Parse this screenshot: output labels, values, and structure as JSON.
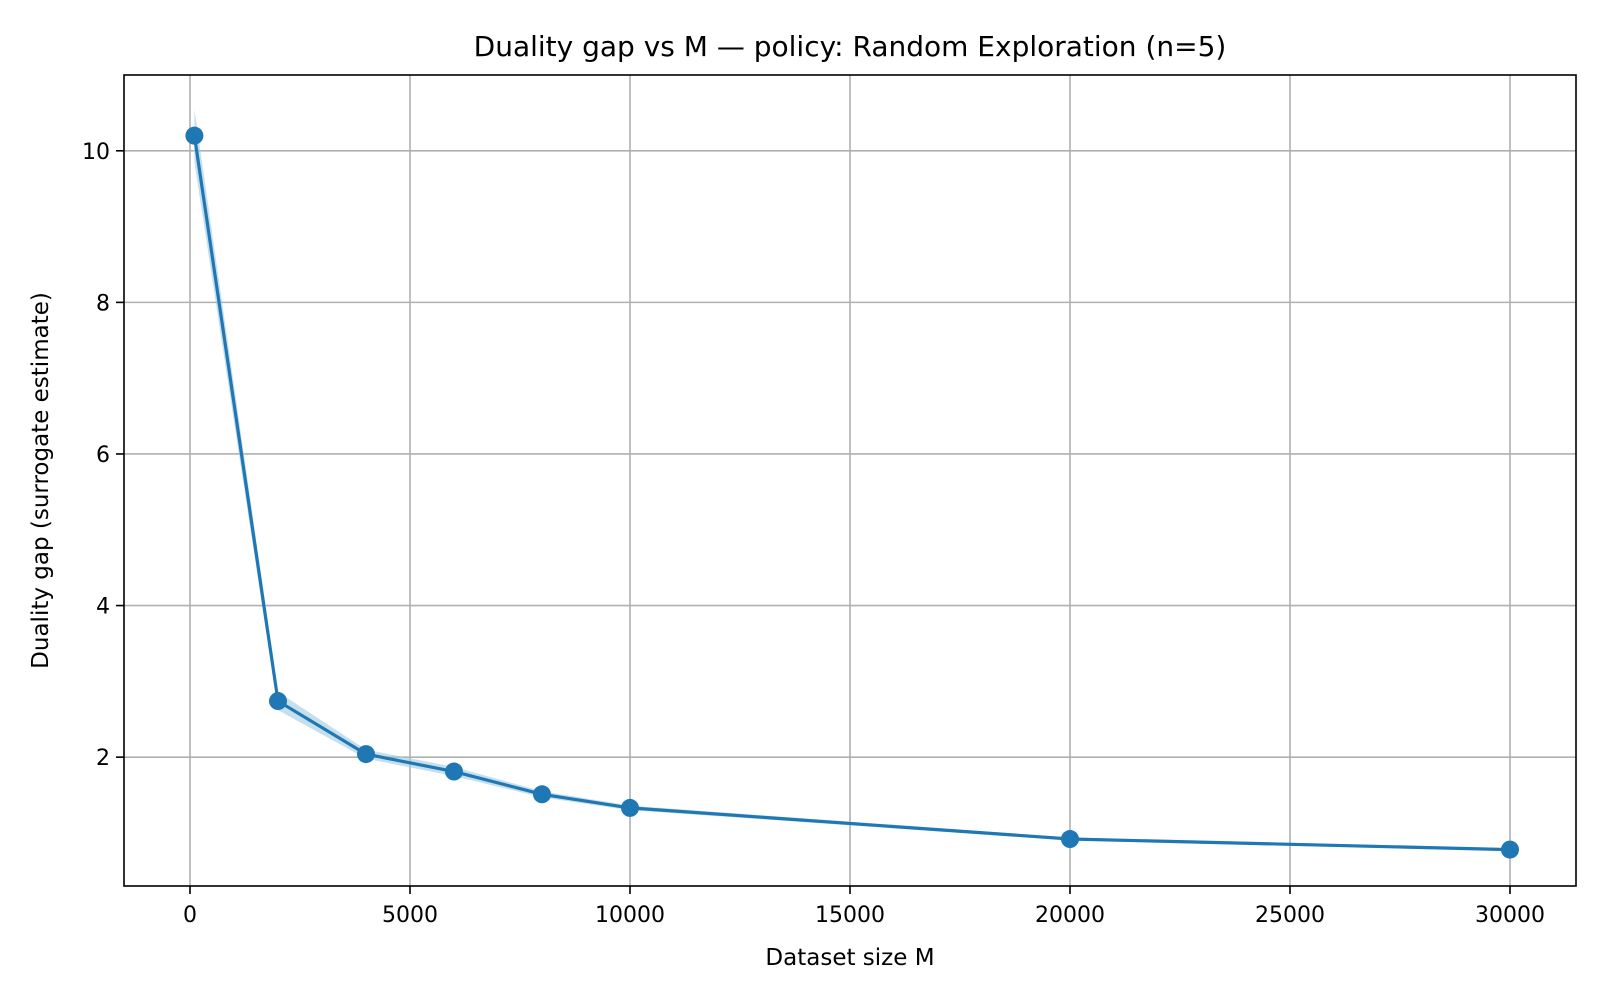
{
  "chart_data": {
    "type": "line",
    "title": "Duality gap vs M  — policy: Random Exploration  (n=5)",
    "xlabel": "Dataset size M",
    "ylabel": "Duality gap (surrogate estimate)",
    "xlim": [
      -1500,
      31500
    ],
    "ylim": [
      0.3,
      11.0
    ],
    "xticks": [
      0,
      5000,
      10000,
      15000,
      20000,
      25000,
      30000
    ],
    "yticks": [
      2,
      4,
      6,
      8,
      10
    ],
    "grid": true,
    "series": [
      {
        "x": [
          100,
          2000,
          4000,
          6000,
          8000,
          10000,
          20000,
          30000
        ],
        "y": [
          10.2,
          2.74,
          2.04,
          1.81,
          1.51,
          1.33,
          0.92,
          0.78
        ],
        "lower": [
          9.85,
          2.62,
          1.98,
          1.75,
          1.47,
          1.3,
          0.9,
          0.76
        ],
        "upper": [
          10.55,
          2.86,
          2.1,
          1.87,
          1.55,
          1.36,
          0.94,
          0.8
        ],
        "color": "#1f77b4",
        "band_color": "#9ecae1"
      }
    ]
  }
}
